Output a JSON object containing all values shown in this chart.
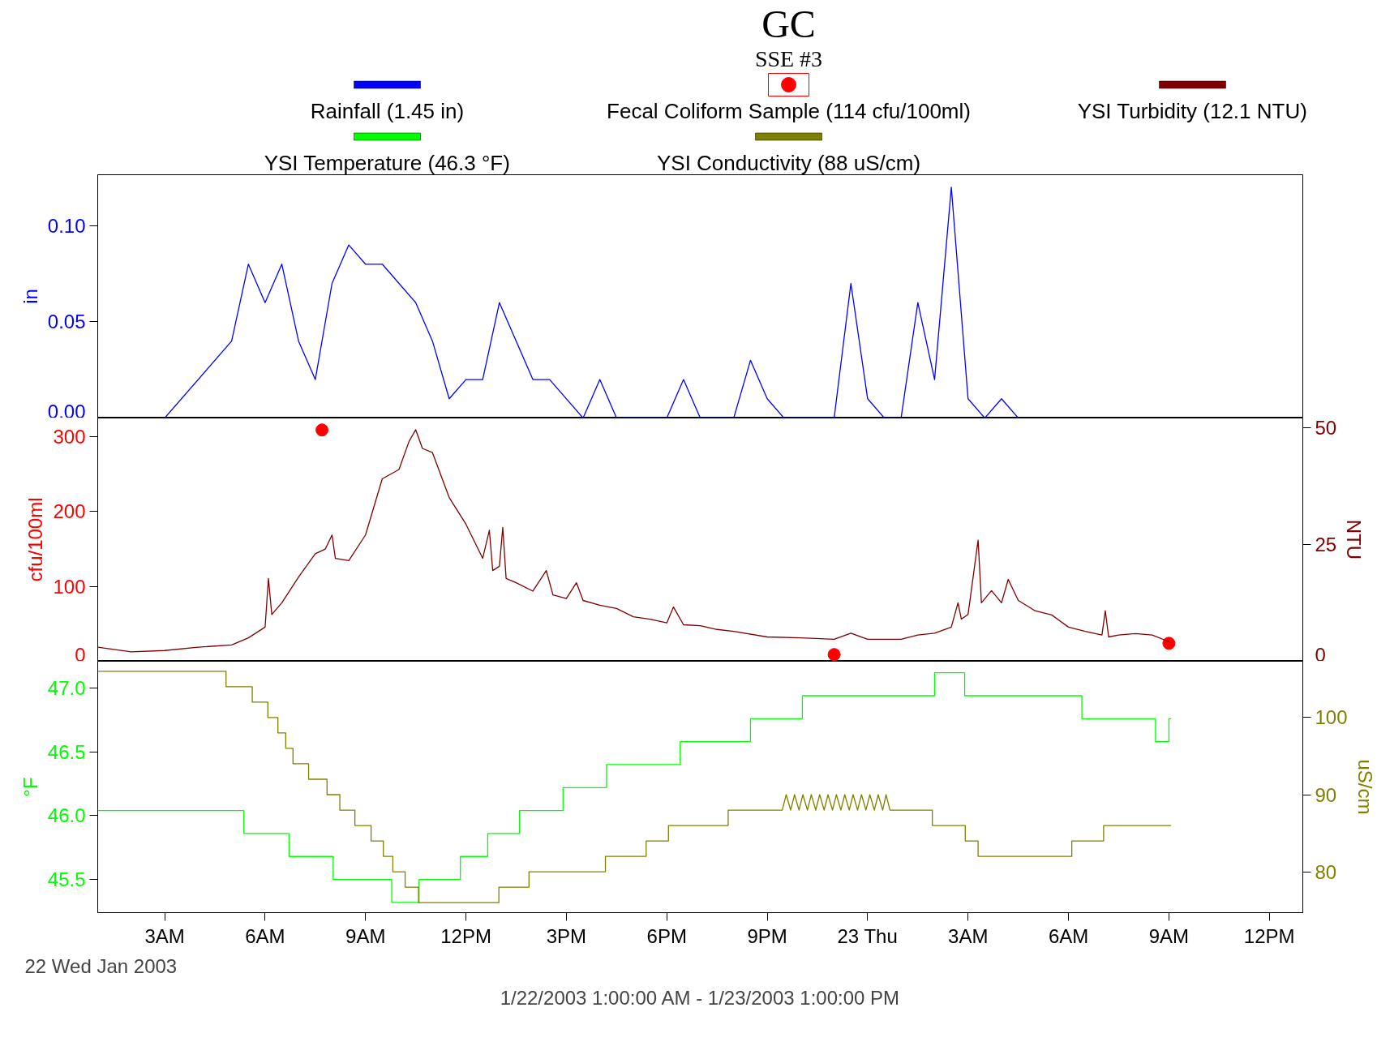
{
  "chart_data": [
    {
      "type": "line",
      "title": "GC",
      "subtitle": "SSE #3",
      "ylabel": "in",
      "xlim": [
        "2003-01-22T01:00",
        "2003-01-23T13:00"
      ],
      "ylim": [
        0,
        0.1265
      ],
      "yticks": [
        {
          "value": 0,
          "label": "0.00"
        },
        {
          "value": 0.05,
          "label": "0.05"
        },
        {
          "value": 0.1,
          "label": "0.10"
        }
      ],
      "tick_labels": "y",
      "legend": "top",
      "series": [
        {
          "name": "Rainfall (1.45 in)",
          "color": "#0000ff",
          "x": [
            "2003-01-22T03:00",
            "2003-01-22T05:00",
            "2003-01-22T05:30",
            "2003-01-22T06:00",
            "2003-01-22T06:30",
            "2003-01-22T07:00",
            "2003-01-22T07:30",
            "2003-01-22T08:00",
            "2003-01-22T08:30",
            "2003-01-22T09:00",
            "2003-01-22T09:30",
            "2003-01-22T10:30",
            "2003-01-22T11:00",
            "2003-01-22T11:30",
            "2003-01-22T12:00",
            "2003-01-22T12:30",
            "2003-01-22T13:00",
            "2003-01-22T14:00",
            "2003-01-22T14:30",
            "2003-01-22T15:30",
            "2003-01-22T16:00",
            "2003-01-22T16:30",
            "2003-01-22T18:00",
            "2003-01-22T18:30",
            "2003-01-22T19:00",
            "2003-01-22T20:00",
            "2003-01-22T20:30",
            "2003-01-22T21:00",
            "2003-01-22T21:30",
            "2003-01-22T23:00",
            "2003-01-22T23:30",
            "2003-01-23T00:00",
            "2003-01-23T00:30",
            "2003-01-23T01:00",
            "2003-01-23T01:30",
            "2003-01-23T02:00",
            "2003-01-23T02:30",
            "2003-01-23T03:00",
            "2003-01-23T03:30",
            "2003-01-23T04:00",
            "2003-01-23T04:30"
          ],
          "values": [
            0,
            0.04,
            0.08,
            0.06,
            0.08,
            0.04,
            0.02,
            0.07,
            0.09,
            0.08,
            0.08,
            0.06,
            0.04,
            0.01,
            0.02,
            0.02,
            0.06,
            0.02,
            0.02,
            0,
            0.02,
            0,
            0,
            0.02,
            0,
            0,
            0.03,
            0.01,
            0,
            0,
            0.07,
            0.01,
            0,
            0,
            0.06,
            0.02,
            0.12,
            0.01,
            0,
            0.01,
            0
          ]
        }
      ]
    },
    {
      "type": "line",
      "ylabel": "cfu/100ml",
      "y2label": "NTU",
      "xlim": [
        "2003-01-22T01:00",
        "2003-01-23T13:00"
      ],
      "ylim": [
        0,
        325
      ],
      "yticks": [
        0,
        100,
        200,
        300
      ],
      "y2lim": [
        0,
        52
      ],
      "y2ticks": [
        0,
        25,
        50
      ],
      "tick_labels": "y",
      "legend": "top",
      "series": [
        {
          "name": "Fecal Coliform Sample (114 cfu/100ml)",
          "type": "scatter",
          "marker": "circle",
          "color": "#ff0000",
          "x": [
            "2003-01-22T07:42",
            "2003-01-22T23:00",
            "2003-01-23T09:00"
          ],
          "values": [
            309,
            9,
            24
          ]
        },
        {
          "name": "YSI Turbidity (12.1 NTU)",
          "color": "#800000",
          "axis": "y2",
          "x": [
            "2003-01-22T01:00",
            "2003-01-22T02:00",
            "2003-01-22T03:00",
            "2003-01-22T04:00",
            "2003-01-22T05:00",
            "2003-01-22T05:30",
            "2003-01-22T06:00",
            "2003-01-22T06:06",
            "2003-01-22T06:12",
            "2003-01-22T06:30",
            "2003-01-22T07:00",
            "2003-01-22T07:30",
            "2003-01-22T07:48",
            "2003-01-22T08:00",
            "2003-01-22T08:06",
            "2003-01-22T08:30",
            "2003-01-22T09:00",
            "2003-01-22T09:30",
            "2003-01-22T10:00",
            "2003-01-22T10:18",
            "2003-01-22T10:30",
            "2003-01-22T10:42",
            "2003-01-22T11:00",
            "2003-01-22T11:30",
            "2003-01-22T12:00",
            "2003-01-22T12:30",
            "2003-01-22T12:42",
            "2003-01-22T12:48",
            "2003-01-22T13:00",
            "2003-01-22T13:06",
            "2003-01-22T13:12",
            "2003-01-22T13:30",
            "2003-01-22T14:00",
            "2003-01-22T14:24",
            "2003-01-22T14:36",
            "2003-01-22T15:00",
            "2003-01-22T15:18",
            "2003-01-22T15:30",
            "2003-01-22T16:00",
            "2003-01-22T16:30",
            "2003-01-22T17:00",
            "2003-01-22T17:30",
            "2003-01-22T18:00",
            "2003-01-22T18:12",
            "2003-01-22T18:30",
            "2003-01-22T19:00",
            "2003-01-22T19:30",
            "2003-01-22T20:00",
            "2003-01-22T21:00",
            "2003-01-22T22:00",
            "2003-01-22T23:00",
            "2003-01-22T23:30",
            "2003-01-23T00:00",
            "2003-01-23T01:00",
            "2003-01-23T01:30",
            "2003-01-23T02:00",
            "2003-01-23T02:30",
            "2003-01-23T02:42",
            "2003-01-23T02:48",
            "2003-01-23T03:00",
            "2003-01-23T03:18",
            "2003-01-23T03:24",
            "2003-01-23T03:42",
            "2003-01-23T04:00",
            "2003-01-23T04:12",
            "2003-01-23T04:30",
            "2003-01-23T05:00",
            "2003-01-23T05:30",
            "2003-01-23T06:00",
            "2003-01-23T06:30",
            "2003-01-23T07:00",
            "2003-01-23T07:06",
            "2003-01-23T07:12",
            "2003-01-23T07:30",
            "2003-01-23T08:00",
            "2003-01-23T08:30",
            "2003-01-23T09:00"
          ],
          "values": [
            3,
            2,
            2.3,
            3,
            3.5,
            5,
            7.3,
            17.7,
            10,
            12.5,
            18,
            23,
            24,
            27,
            22,
            21.5,
            27,
            39,
            41,
            47,
            49.5,
            45.5,
            44.6,
            35,
            29.3,
            22,
            28,
            19.4,
            20.3,
            28.6,
            17.7,
            16.8,
            15,
            19.4,
            14.2,
            13.4,
            16.8,
            13,
            12,
            11.3,
            9.5,
            9,
            8.2,
            11.6,
            7.8,
            7.6,
            6.8,
            6.4,
            5.2,
            5,
            4.7,
            6,
            4.7,
            4.7,
            5.6,
            6,
            7.3,
            12.5,
            9,
            10,
            25.9,
            12.5,
            15.1,
            12.5,
            17.5,
            13,
            10.8,
            9.9,
            7.3,
            6.4,
            5.6,
            10.8,
            5.2,
            5.6,
            5.9,
            5.6,
            4.2
          ]
        }
      ]
    },
    {
      "type": "line",
      "ylabel": "°F",
      "y2label": "uS/cm",
      "xlim": [
        "2003-01-22T01:00",
        "2003-01-23T13:00"
      ],
      "ylim": [
        45.24,
        47.21
      ],
      "yticks": [
        {
          "value": 45.5,
          "label": "45.5"
        },
        {
          "value": 46,
          "label": "46.0"
        },
        {
          "value": 46.5,
          "label": "46.5"
        },
        {
          "value": 47,
          "label": "47.0"
        }
      ],
      "y2lim": [
        74.7,
        107.3
      ],
      "y2ticks": [
        80,
        90,
        100
      ],
      "xticks": [
        {
          "value": "2003-01-22T03:00",
          "label": "3AM"
        },
        {
          "value": "2003-01-22T06:00",
          "label": "6AM"
        },
        {
          "value": "2003-01-22T09:00",
          "label": "9AM"
        },
        {
          "value": "2003-01-22T12:00",
          "label": "12PM"
        },
        {
          "value": "2003-01-22T15:00",
          "label": "3PM"
        },
        {
          "value": "2003-01-22T18:00",
          "label": "6PM"
        },
        {
          "value": "2003-01-22T21:00",
          "label": "9PM"
        },
        {
          "value": "2003-01-23T00:00",
          "label": "23 Thu"
        },
        {
          "value": "2003-01-23T03:00",
          "label": "3AM"
        },
        {
          "value": "2003-01-23T06:00",
          "label": "6AM"
        },
        {
          "value": "2003-01-23T09:00",
          "label": "9AM"
        },
        {
          "value": "2003-01-23T12:00",
          "label": "12PM"
        }
      ],
      "legend": "top",
      "annotations": [
        "22 Wed Jan 2003",
        "1/22/2003 1:00:00 AM - 1/23/2003 1:00:00 PM"
      ],
      "series": [
        {
          "name": "YSI Temperature (46.3 °F)",
          "type": "step",
          "color": "#00ff00",
          "x": [
            "2003-01-22T01:00",
            "2003-01-22T05:22",
            "2003-01-22T06:43",
            "2003-01-22T08:02",
            "2003-01-22T09:47",
            "2003-01-22T10:36",
            "2003-01-22T11:50",
            "2003-01-22T12:39",
            "2003-01-22T13:36",
            "2003-01-22T14:54",
            "2003-01-22T16:12",
            "2003-01-22T18:24",
            "2003-01-22T20:30",
            "2003-01-22T22:03",
            "2003-01-23T02:00",
            "2003-01-23T02:54",
            "2003-01-23T06:24",
            "2003-01-23T08:36",
            "2003-01-23T09:00",
            "2003-01-23T09:04"
          ],
          "values": [
            46.04,
            45.86,
            45.68,
            45.5,
            45.32,
            45.5,
            45.68,
            45.86,
            46.04,
            46.22,
            46.4,
            46.58,
            46.76,
            46.94,
            47.12,
            46.94,
            46.76,
            46.58,
            46.76,
            46.76
          ]
        },
        {
          "name": "YSI Conductivity (88 uS/cm)",
          "color": "#808000",
          "axis": "y2",
          "x": [
            "2003-01-22T01:00",
            "2003-01-22T04:50",
            "2003-01-22T04:50",
            "2003-01-22T05:37",
            "2003-01-22T05:37",
            "2003-01-22T06:05",
            "2003-01-22T06:05",
            "2003-01-22T06:23",
            "2003-01-22T06:23",
            "2003-01-22T06:37",
            "2003-01-22T06:37",
            "2003-01-22T06:50",
            "2003-01-22T06:50",
            "2003-01-22T07:18",
            "2003-01-22T07:18",
            "2003-01-22T07:51",
            "2003-01-22T07:51",
            "2003-01-22T08:14",
            "2003-01-22T08:14",
            "2003-01-22T08:41",
            "2003-01-22T08:41",
            "2003-01-22T09:10",
            "2003-01-22T09:10",
            "2003-01-22T09:32",
            "2003-01-22T09:32",
            "2003-01-22T09:49",
            "2003-01-22T09:49",
            "2003-01-22T10:11",
            "2003-01-22T10:11",
            "2003-01-22T10:35",
            "2003-01-22T10:35",
            "2003-01-22T12:59",
            "2003-01-22T12:59",
            "2003-01-22T13:53",
            "2003-01-22T13:53",
            "2003-01-22T16:10",
            "2003-01-22T16:10",
            "2003-01-22T17:23",
            "2003-01-22T17:23",
            "2003-01-22T18:03",
            "2003-01-22T18:03",
            "2003-01-22T19:50",
            "2003-01-22T19:50",
            "2003-01-22T21:27",
            "2003-01-22T21:34",
            "2003-01-22T21:42",
            "2003-01-22T21:49",
            "2003-01-22T21:57",
            "2003-01-22T22:04",
            "2003-01-22T22:12",
            "2003-01-22T22:19",
            "2003-01-22T22:27",
            "2003-01-22T22:34",
            "2003-01-22T22:42",
            "2003-01-22T22:49",
            "2003-01-22T22:57",
            "2003-01-22T23:04",
            "2003-01-22T23:12",
            "2003-01-22T23:19",
            "2003-01-22T23:27",
            "2003-01-22T23:34",
            "2003-01-22T23:42",
            "2003-01-22T23:49",
            "2003-01-22T23:57",
            "2003-01-23T00:04",
            "2003-01-23T00:12",
            "2003-01-23T00:19",
            "2003-01-23T00:27",
            "2003-01-23T00:33",
            "2003-01-23T00:40",
            "2003-01-23T01:56",
            "2003-01-23T01:56",
            "2003-01-23T02:55",
            "2003-01-23T02:55",
            "2003-01-23T03:18",
            "2003-01-23T03:18",
            "2003-01-23T06:06",
            "2003-01-23T06:06",
            "2003-01-23T07:03",
            "2003-01-23T07:03",
            "2003-01-23T09:04"
          ],
          "values": [
            106,
            106,
            104,
            104,
            102,
            102,
            100,
            100,
            98,
            98,
            96,
            96,
            94,
            94,
            92,
            92,
            90,
            90,
            88,
            88,
            86,
            86,
            84,
            84,
            82,
            82,
            80,
            80,
            78,
            78,
            76,
            76,
            78,
            78,
            80,
            80,
            82,
            82,
            84,
            84,
            86,
            86,
            88,
            88,
            90,
            88,
            90,
            88,
            90,
            88,
            90,
            88,
            90,
            88,
            90,
            88,
            90,
            88,
            90,
            88,
            90,
            88,
            90,
            88,
            90,
            88,
            90,
            88,
            90,
            88,
            88,
            86,
            86,
            84,
            84,
            82,
            82,
            84,
            84,
            86,
            86
          ]
        }
      ]
    }
  ]
}
